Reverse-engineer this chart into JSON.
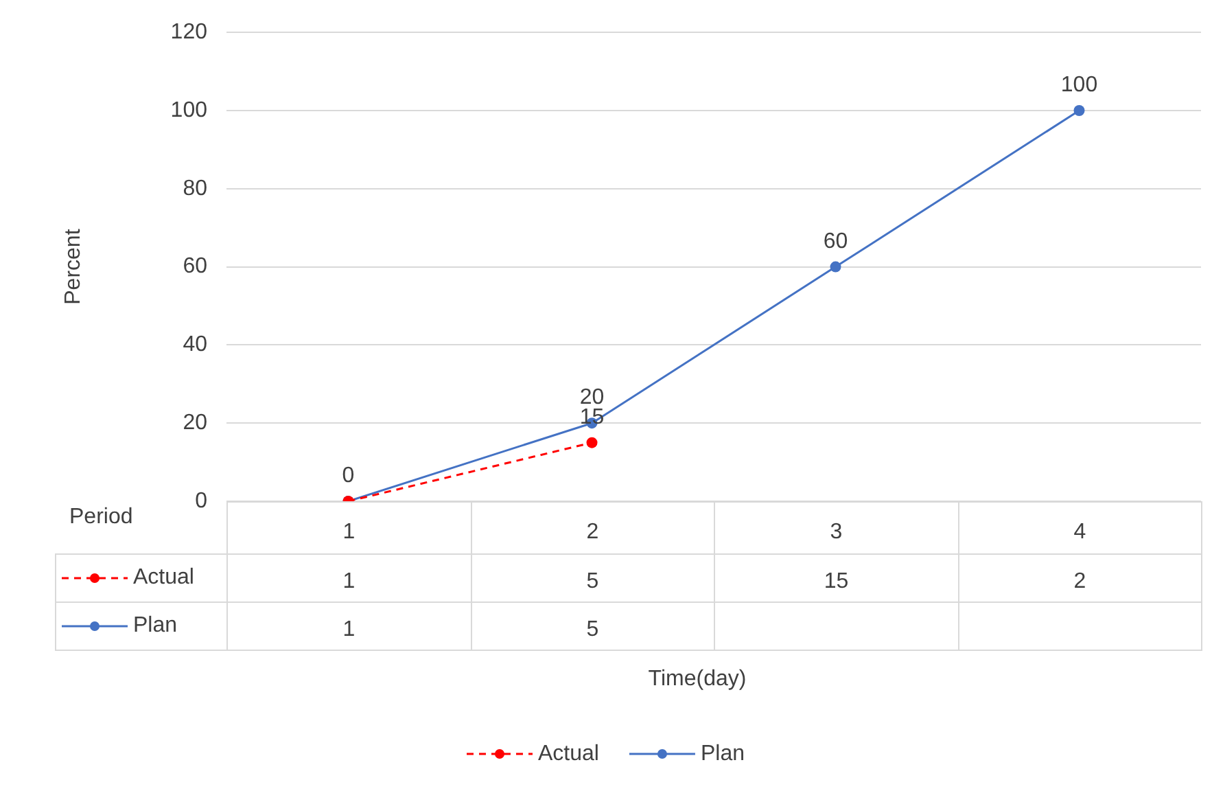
{
  "chart_data": [
    {
      "type": "line",
      "ylabel": "Percent",
      "xlabel": "Time(day)",
      "categories": [
        null,
        null,
        null,
        null
      ],
      "ylim": [
        0,
        120
      ],
      "yticks": [
        0,
        20,
        40,
        60,
        80,
        100,
        120
      ],
      "grid": "y",
      "legend": "bottom",
      "marker": "circle",
      "tick_labels": "y",
      "series": [
        {
          "name": "Actual",
          "color": "#ff0000",
          "line_style": "dashed",
          "values": [
            0,
            15,
            null,
            null
          ],
          "value_labels": [
            null,
            "15",
            null,
            null
          ]
        },
        {
          "name": "Plan",
          "color": "#4472c4",
          "line_style": "solid",
          "values": [
            0,
            20,
            60,
            100
          ],
          "value_labels": [
            "0",
            "20",
            "60",
            "100"
          ]
        }
      ]
    },
    {
      "type": "heatmap",
      "data_labels": true,
      "annotations": [
        "Period"
      ],
      "categories": [
        "1",
        "2",
        "3",
        "4"
      ],
      "y_categories": [
        "Actual",
        "Plan"
      ],
      "cells": [
        [
          1,
          5,
          15,
          2
        ],
        [
          1,
          5,
          null,
          null
        ]
      ]
    }
  ]
}
